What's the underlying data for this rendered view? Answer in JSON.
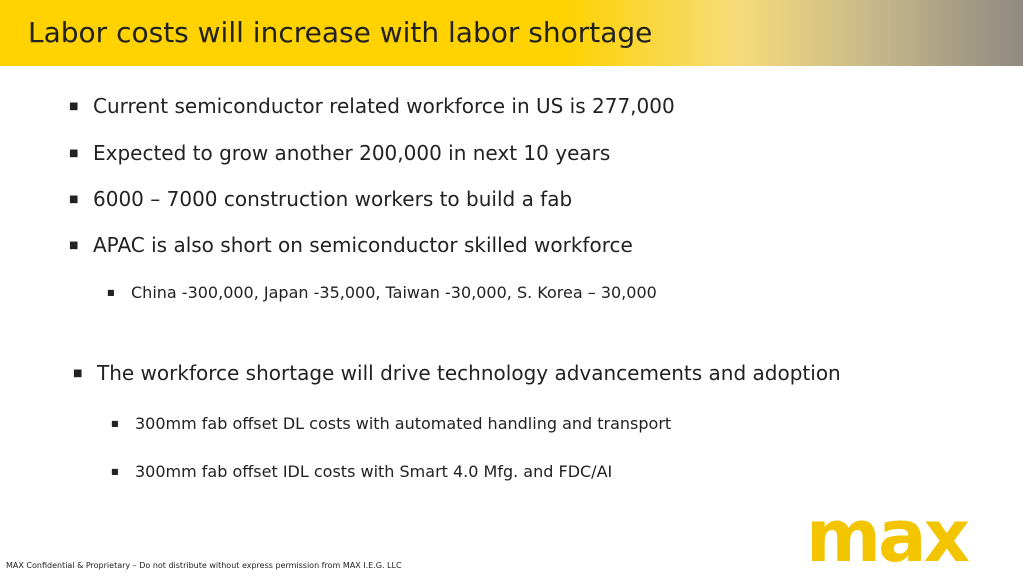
{
  "header": {
    "title": "Labor costs will increase with labor shortage"
  },
  "bullets": [
    {
      "text": "Current semiconductor related workforce in US is 277,000",
      "level": 1
    },
    {
      "text": "Expected to grow another 200,000 in next 10 years",
      "level": 1
    },
    {
      "text": "6000 – 7000 construction workers to build a fab",
      "level": 1
    },
    {
      "text": "APAC is also short on semiconductor skilled workforce",
      "level": 1
    },
    {
      "text": "China -300,000, Japan -35,000, Taiwan -30,000, S. Korea – 30,000",
      "level": 2
    }
  ],
  "bullets2": [
    {
      "text": "The workforce shortage will drive technology advancements and adoption",
      "level": 1
    },
    {
      "text": "300mm fab offset DL costs with automated handling and transport",
      "level": 2
    },
    {
      "text": "300mm fab offset IDL costs with Smart 4.0 Mfg. and FDC/AI",
      "level": 2
    }
  ],
  "footer": {
    "text": "MAX Confidential & Proprietary – Do not distribute without express permission from MAX I.E.G. LLC",
    "logo": "max"
  }
}
